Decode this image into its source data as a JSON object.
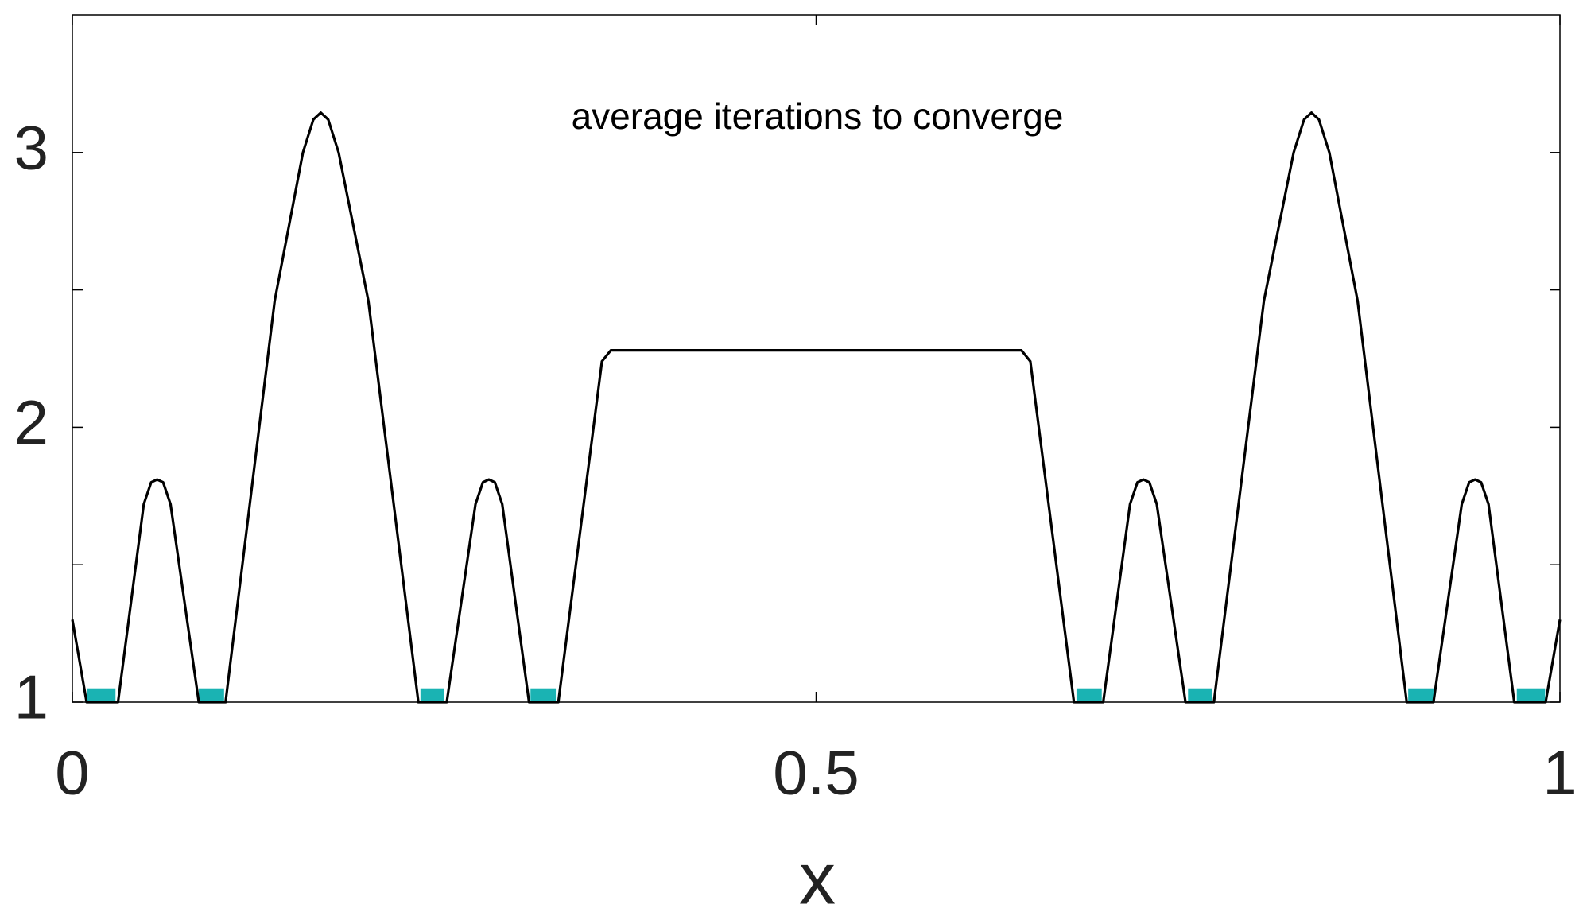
{
  "chart_data": {
    "type": "line",
    "annotation": "average iterations to converge",
    "x_label": "x",
    "xlim": [
      0,
      1
    ],
    "ylim": [
      1,
      3.5
    ],
    "xticks": [
      0,
      0.5,
      1
    ],
    "yticks": [
      1,
      2,
      3
    ],
    "yminor_ticks": [
      1.5,
      2.5
    ],
    "grid": false,
    "x": [
      0,
      0.0096,
      0.0307,
      0.048,
      0.053,
      0.057,
      0.061,
      0.066,
      0.085,
      0.103,
      0.136,
      0.155,
      0.162,
      0.167,
      0.172,
      0.179,
      0.199,
      0.2326,
      0.2517,
      0.271,
      0.276,
      0.28,
      0.284,
      0.289,
      0.307,
      0.3267,
      0.356,
      0.362,
      0.5,
      0.638,
      0.644,
      0.6733,
      0.693,
      0.711,
      0.716,
      0.72,
      0.724,
      0.729,
      0.7483,
      0.7674,
      0.801,
      0.821,
      0.828,
      0.833,
      0.838,
      0.845,
      0.864,
      0.897,
      0.915,
      0.934,
      0.939,
      0.943,
      0.947,
      0.952,
      0.9693,
      0.9904,
      1
    ],
    "series": [
      {
        "color": "#000000",
        "values": [
          1.3,
          1.0,
          1.0,
          1.72,
          1.8,
          1.81,
          1.8,
          1.72,
          1.0,
          1.0,
          2.46,
          3.0,
          3.12,
          3.145,
          3.12,
          3.0,
          2.46,
          1.0,
          1.0,
          1.72,
          1.8,
          1.81,
          1.8,
          1.72,
          1.0,
          1.0,
          2.24,
          2.28,
          2.28,
          2.28,
          2.24,
          1.0,
          1.0,
          1.72,
          1.8,
          1.81,
          1.8,
          1.72,
          1.0,
          1.0,
          2.46,
          3.0,
          3.12,
          3.145,
          3.12,
          3.0,
          2.46,
          1.0,
          1.0,
          1.72,
          1.8,
          1.81,
          1.8,
          1.72,
          1.0,
          1.0,
          1.3
        ]
      }
    ],
    "bands": {
      "color": "#1ab3b3",
      "top": 1.05,
      "x0": [
        0.01,
        0.085,
        0.234,
        0.308,
        0.675,
        0.75,
        0.898,
        0.971
      ],
      "x1": [
        0.029,
        0.102,
        0.25,
        0.325,
        0.692,
        0.766,
        0.915,
        0.99
      ]
    }
  }
}
